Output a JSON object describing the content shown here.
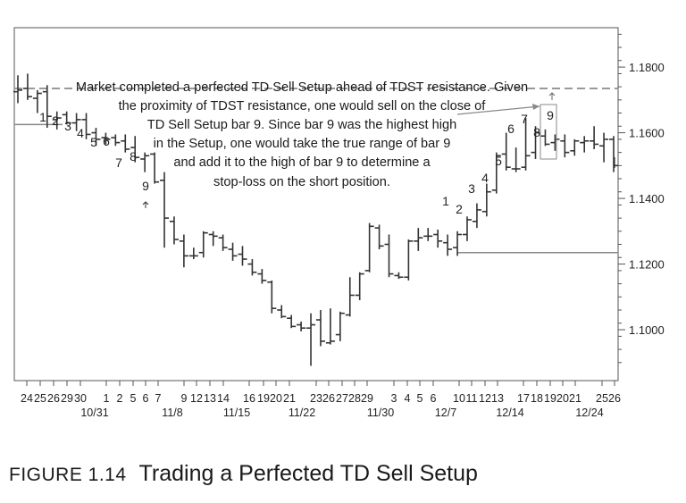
{
  "figure": {
    "number": "FIGURE 1.14",
    "title": "Trading a Perfected TD Sell Setup"
  },
  "chart_data": {
    "type": "ohlc",
    "yticks": [
      "1.1800",
      "1.1600",
      "1.1400",
      "1.1200",
      "1.1000"
    ],
    "ylim": [
      1.0845,
      1.192
    ],
    "annotation_lines": [
      "Market completed a perfected TD Sell Setup ahead of TDST resistance. Given",
      "the proximity of TDST resistance, one would sell on the close of",
      "TD Sell Setup bar 9. Since bar 9 was the highest high",
      "in the Setup, one would take the true range of bar 9",
      "and add it to the high of bar 9 to determine a",
      "stop-loss on the short position."
    ],
    "x_day_labels": [
      "24",
      "25",
      "26",
      "29",
      "30",
      "1",
      "2",
      "5",
      "6",
      "7",
      "9",
      "12",
      "13",
      "14",
      "16",
      "19",
      "20",
      "21",
      "23",
      "26",
      "27",
      "28",
      "29",
      "3",
      "4",
      "5",
      "6",
      "10",
      "11",
      "12",
      "13",
      "17",
      "18",
      "19",
      "20",
      "21",
      "25",
      "26"
    ],
    "x_date_labels": [
      "10/31",
      "11/8",
      "11/15",
      "11/22",
      "11/30",
      "12/7",
      "12/14",
      "12/24"
    ],
    "tdst_resistance": 1.1735,
    "tdst_support": 1.1235,
    "setup_counts_first": [
      "1",
      "2",
      "3",
      "4",
      "5",
      "6",
      "7",
      "8",
      "9"
    ],
    "setup_counts_second": [
      "1",
      "2",
      "3",
      "4",
      "5",
      "6",
      "7",
      "8",
      "9"
    ],
    "bars": [
      {
        "o": 1.1725,
        "h": 1.1775,
        "l": 1.169,
        "c": 1.173
      },
      {
        "o": 1.1735,
        "h": 1.178,
        "l": 1.17,
        "c": 1.171
      },
      {
        "o": 1.1705,
        "h": 1.173,
        "l": 1.166,
        "c": 1.172
      },
      {
        "o": 1.1725,
        "h": 1.1745,
        "l": 1.1615,
        "c": 1.165
      },
      {
        "o": 1.164,
        "h": 1.1665,
        "l": 1.161,
        "c": 1.1645
      },
      {
        "o": 1.1655,
        "h": 1.1665,
        "l": 1.1625,
        "c": 1.163
      },
      {
        "o": 1.163,
        "h": 1.166,
        "l": 1.1605,
        "c": 1.164
      },
      {
        "o": 1.164,
        "h": 1.166,
        "l": 1.158,
        "c": 1.1595
      },
      {
        "o": 1.16,
        "h": 1.1615,
        "l": 1.156,
        "c": 1.158
      },
      {
        "o": 1.1585,
        "h": 1.16,
        "l": 1.1565,
        "c": 1.158
      },
      {
        "o": 1.1585,
        "h": 1.1595,
        "l": 1.156,
        "c": 1.157
      },
      {
        "o": 1.1575,
        "h": 1.1595,
        "l": 1.154,
        "c": 1.155
      },
      {
        "o": 1.1555,
        "h": 1.159,
        "l": 1.151,
        "c": 1.1525
      },
      {
        "o": 1.152,
        "h": 1.154,
        "l": 1.148,
        "c": 1.153
      },
      {
        "o": 1.1535,
        "h": 1.154,
        "l": 1.1445,
        "c": 1.145
      },
      {
        "o": 1.1455,
        "h": 1.148,
        "l": 1.125,
        "c": 1.134
      },
      {
        "o": 1.133,
        "h": 1.1345,
        "l": 1.126,
        "c": 1.1275
      },
      {
        "o": 1.127,
        "h": 1.129,
        "l": 1.119,
        "c": 1.1225
      },
      {
        "o": 1.1225,
        "h": 1.125,
        "l": 1.1215,
        "c": 1.1225
      },
      {
        "o": 1.1235,
        "h": 1.13,
        "l": 1.122,
        "c": 1.1295
      },
      {
        "o": 1.129,
        "h": 1.13,
        "l": 1.1255,
        "c": 1.1285
      },
      {
        "o": 1.128,
        "h": 1.129,
        "l": 1.124,
        "c": 1.125
      },
      {
        "o": 1.1245,
        "h": 1.1265,
        "l": 1.121,
        "c": 1.1225
      },
      {
        "o": 1.123,
        "h": 1.1255,
        "l": 1.1195,
        "c": 1.1215
      },
      {
        "o": 1.12,
        "h": 1.1215,
        "l": 1.1165,
        "c": 1.1175
      },
      {
        "o": 1.117,
        "h": 1.1185,
        "l": 1.114,
        "c": 1.115
      },
      {
        "o": 1.1145,
        "h": 1.115,
        "l": 1.105,
        "c": 1.1065
      },
      {
        "o": 1.106,
        "h": 1.1075,
        "l": 1.1035,
        "c": 1.104
      },
      {
        "o": 1.1035,
        "h": 1.1045,
        "l": 1.1005,
        "c": 1.101
      },
      {
        "o": 1.1015,
        "h": 1.1025,
        "l": 1.0995,
        "c": 1.1005
      },
      {
        "o": 1.1005,
        "h": 1.105,
        "l": 1.089,
        "c": 1.1015
      },
      {
        "o": 1.103,
        "h": 1.106,
        "l": 1.095,
        "c": 1.0965
      },
      {
        "o": 1.096,
        "h": 1.1065,
        "l": 1.0955,
        "c": 1.0965
      },
      {
        "o": 1.0985,
        "h": 1.1055,
        "l": 1.0965,
        "c": 1.105
      },
      {
        "o": 1.1045,
        "h": 1.116,
        "l": 1.104,
        "c": 1.1105
      },
      {
        "o": 1.1105,
        "h": 1.1175,
        "l": 1.109,
        "c": 1.117
      },
      {
        "o": 1.118,
        "h": 1.1325,
        "l": 1.1175,
        "c": 1.1315
      },
      {
        "o": 1.131,
        "h": 1.132,
        "l": 1.1245,
        "c": 1.1255
      },
      {
        "o": 1.126,
        "h": 1.129,
        "l": 1.116,
        "c": 1.117
      },
      {
        "o": 1.1165,
        "h": 1.1175,
        "l": 1.1155,
        "c": 1.116
      },
      {
        "o": 1.116,
        "h": 1.1275,
        "l": 1.115,
        "c": 1.127
      },
      {
        "o": 1.127,
        "h": 1.131,
        "l": 1.124,
        "c": 1.128
      },
      {
        "o": 1.1285,
        "h": 1.131,
        "l": 1.127,
        "c": 1.1285
      },
      {
        "o": 1.129,
        "h": 1.1305,
        "l": 1.125,
        "c": 1.127
      },
      {
        "o": 1.1265,
        "h": 1.129,
        "l": 1.1225,
        "c": 1.1245
      },
      {
        "o": 1.125,
        "h": 1.13,
        "l": 1.1225,
        "c": 1.129
      },
      {
        "o": 1.129,
        "h": 1.1345,
        "l": 1.127,
        "c": 1.1335
      },
      {
        "o": 1.133,
        "h": 1.1385,
        "l": 1.131,
        "c": 1.1365
      },
      {
        "o": 1.136,
        "h": 1.1445,
        "l": 1.1345,
        "c": 1.142
      },
      {
        "o": 1.1425,
        "h": 1.154,
        "l": 1.1415,
        "c": 1.153
      },
      {
        "o": 1.1535,
        "h": 1.16,
        "l": 1.1485,
        "c": 1.1495
      },
      {
        "o": 1.149,
        "h": 1.1555,
        "l": 1.148,
        "c": 1.149
      },
      {
        "o": 1.1495,
        "h": 1.1645,
        "l": 1.1485,
        "c": 1.153
      },
      {
        "o": 1.154,
        "h": 1.162,
        "l": 1.152,
        "c": 1.16
      },
      {
        "o": 1.159,
        "h": 1.161,
        "l": 1.156,
        "c": 1.1565
      },
      {
        "o": 1.157,
        "h": 1.1595,
        "l": 1.1545,
        "c": 1.158
      },
      {
        "o": 1.1575,
        "h": 1.1595,
        "l": 1.1525,
        "c": 1.154
      },
      {
        "o": 1.1545,
        "h": 1.158,
        "l": 1.153,
        "c": 1.1575
      },
      {
        "o": 1.157,
        "h": 1.159,
        "l": 1.154,
        "c": 1.1575
      },
      {
        "o": 1.1575,
        "h": 1.162,
        "l": 1.155,
        "c": 1.1565
      },
      {
        "o": 1.156,
        "h": 1.16,
        "l": 1.151,
        "c": 1.158
      },
      {
        "o": 1.158,
        "h": 1.159,
        "l": 1.148,
        "c": 1.15
      }
    ]
  }
}
